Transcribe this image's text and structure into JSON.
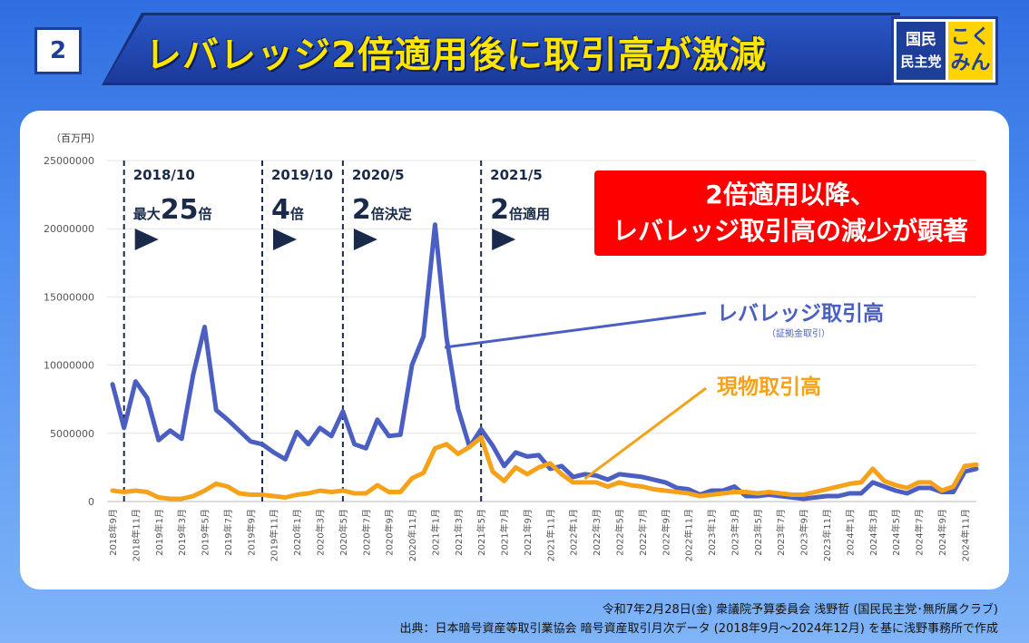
{
  "header": {
    "badge": "2",
    "title": "レバレッジ2倍適用後に取引高が激減",
    "logo_line1": "国民",
    "logo_line2": "民主党",
    "logo_line3": "こく",
    "logo_line4": "みん"
  },
  "callout": {
    "line1": "2倍適用以降、",
    "line2": "レバレッジ取引高の減少が顕著"
  },
  "footer": {
    "line1": "令和7年2月28日(金) 衆議院予算委員会 浅野哲 (国民民主党･無所属クラブ)",
    "line2": "出典：日本暗号資産等取引業協会 暗号資産取引月次データ (2018年9月～2024年12月) を基に浅野事務所で作成"
  },
  "colors": {
    "leverage": "#4a5fc1",
    "spot": "#f5a21a",
    "accent": "#ff0000"
  },
  "chart_data": {
    "type": "line",
    "unit_label": "（百万円）",
    "ylim": [
      0,
      25000000
    ],
    "yticks": [
      "0",
      "5000000",
      "10000000",
      "15000000",
      "20000000",
      "25000000"
    ],
    "x": [
      "2018年9月",
      "2018年10月",
      "2018年11月",
      "2018年12月",
      "2019年1月",
      "2019年2月",
      "2019年3月",
      "2019年4月",
      "2019年5月",
      "2019年6月",
      "2019年7月",
      "2019年8月",
      "2019年9月",
      "2019年10月",
      "2019年11月",
      "2019年12月",
      "2020年1月",
      "2020年2月",
      "2020年3月",
      "2020年4月",
      "2020年5月",
      "2020年6月",
      "2020年7月",
      "2020年8月",
      "2020年9月",
      "2020年10月",
      "2020年11月",
      "2020年12月",
      "2021年1月",
      "2021年2月",
      "2021年3月",
      "2021年4月",
      "2021年5月",
      "2021年6月",
      "2021年7月",
      "2021年8月",
      "2021年9月",
      "2021年10月",
      "2021年11月",
      "2021年12月",
      "2022年1月",
      "2022年2月",
      "2022年3月",
      "2022年4月",
      "2022年5月",
      "2022年6月",
      "2022年7月",
      "2022年8月",
      "2022年9月",
      "2022年10月",
      "2022年11月",
      "2022年12月",
      "2023年1月",
      "2023年2月",
      "2023年3月",
      "2023年4月",
      "2023年5月",
      "2023年6月",
      "2023年7月",
      "2023年8月",
      "2023年9月",
      "2023年10月",
      "2023年11月",
      "2023年12月",
      "2024年1月",
      "2024年2月",
      "2024年3月",
      "2024年4月",
      "2024年5月",
      "2024年6月",
      "2024年7月",
      "2024年8月",
      "2024年9月",
      "2024年10月",
      "2024年11月",
      "2024年12月"
    ],
    "xtick_labels": [
      "2018年9月",
      "2018年11月",
      "2019年1月",
      "2019年3月",
      "2019年5月",
      "2019年7月",
      "2019年9月",
      "2019年11月",
      "2020年1月",
      "2020年3月",
      "2020年5月",
      "2020年7月",
      "2020年9月",
      "2020年11月",
      "2021年1月",
      "2021年3月",
      "2021年5月",
      "2021年7月",
      "2021年9月",
      "2021年11月",
      "2022年1月",
      "2022年3月",
      "2022年5月",
      "2022年7月",
      "2022年9月",
      "2022年11月",
      "2023年1月",
      "2023年3月",
      "2023年5月",
      "2023年7月",
      "2023年9月",
      "2023年11月",
      "2024年1月",
      "2024年3月",
      "2024年5月",
      "2024年7月",
      "2024年9月",
      "2024年11月"
    ],
    "series": [
      {
        "name": "レバレッジ取引高",
        "sublabel": "（証拠金取引）",
        "values": [
          8600000,
          5400000,
          8800000,
          7600000,
          4500000,
          5200000,
          4600000,
          9300000,
          12800000,
          6700000,
          6000000,
          5200000,
          4400000,
          4200000,
          3600000,
          3100000,
          5100000,
          4200000,
          5400000,
          4800000,
          6600000,
          4200000,
          3900000,
          6000000,
          4800000,
          4900000,
          10000000,
          12100000,
          20300000,
          12000000,
          6800000,
          4000000,
          5300000,
          4100000,
          2600000,
          3600000,
          3300000,
          3400000,
          2400000,
          2600000,
          1800000,
          2000000,
          1900000,
          1600000,
          2000000,
          1900000,
          1800000,
          1600000,
          1400000,
          1000000,
          900000,
          500000,
          800000,
          800000,
          1100000,
          400000,
          400000,
          500000,
          400000,
          300000,
          200000,
          300000,
          400000,
          400000,
          600000,
          600000,
          1400000,
          1100000,
          800000,
          600000,
          1000000,
          1000000,
          700000,
          700000,
          2200000,
          2400000
        ]
      },
      {
        "name": "現物取引高",
        "values": [
          800000,
          700000,
          800000,
          700000,
          300000,
          200000,
          200000,
          400000,
          800000,
          1300000,
          1100000,
          600000,
          500000,
          500000,
          400000,
          300000,
          500000,
          600000,
          800000,
          700000,
          800000,
          600000,
          600000,
          1200000,
          700000,
          700000,
          1700000,
          2100000,
          3900000,
          4200000,
          3500000,
          4000000,
          4700000,
          2200000,
          1500000,
          2500000,
          2000000,
          2500000,
          2800000,
          2000000,
          1400000,
          1400000,
          1400000,
          1100000,
          1400000,
          1200000,
          1100000,
          900000,
          800000,
          700000,
          600000,
          400000,
          500000,
          600000,
          700000,
          700000,
          600000,
          700000,
          600000,
          500000,
          500000,
          700000,
          900000,
          1100000,
          1300000,
          1400000,
          2400000,
          1500000,
          1200000,
          1000000,
          1400000,
          1400000,
          800000,
          1100000,
          2600000,
          2700000
        ]
      }
    ],
    "events": [
      {
        "index": 1,
        "date": "2018/10",
        "label_prefix": "最大",
        "label_big": "25",
        "label_suffix": "倍"
      },
      {
        "index": 13,
        "date": "2019/10",
        "label_prefix": "",
        "label_big": "4",
        "label_suffix": "倍"
      },
      {
        "index": 20,
        "date": "2020/5",
        "label_prefix": "",
        "label_big": "2",
        "label_suffix": "倍決定"
      },
      {
        "index": 32,
        "date": "2021/5",
        "label_prefix": "",
        "label_big": "2",
        "label_suffix": "倍適用"
      }
    ]
  }
}
